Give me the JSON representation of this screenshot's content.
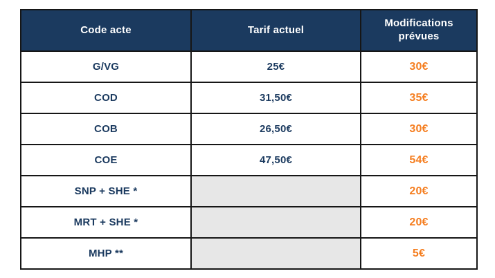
{
  "table": {
    "columns": {
      "code": "Code acte",
      "tarif": "Tarif actuel",
      "modifications": "Modifications prévues"
    },
    "rows": [
      {
        "code": "G/VG",
        "tarif": "25€",
        "modification": "30€"
      },
      {
        "code": "COD",
        "tarif": "31,50€",
        "modification": "35€"
      },
      {
        "code": "COB",
        "tarif": "26,50€",
        "modification": "30€"
      },
      {
        "code": "COE",
        "tarif": "47,50€",
        "modification": "54€"
      },
      {
        "code": "SNP + SHE *",
        "tarif": "",
        "modification": "20€"
      },
      {
        "code": "MRT + SHE *",
        "tarif": "",
        "modification": "20€"
      },
      {
        "code": "MHP **",
        "tarif": "",
        "modification": "5€"
      }
    ],
    "colors": {
      "header_bg": "#1b3a5f",
      "header_text": "#ffffff",
      "body_text": "#1b3a5f",
      "accent_orange": "#f57e20",
      "empty_cell_bg": "#e7e7e7",
      "border": "#161616"
    }
  }
}
